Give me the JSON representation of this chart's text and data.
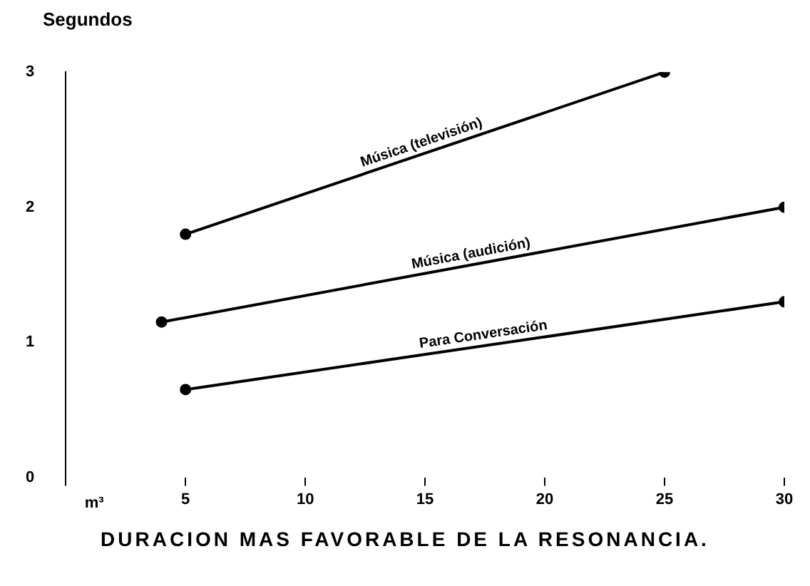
{
  "chart_data": {
    "type": "line",
    "title": "DURACION MAS FAVORABLE DE LA RESONANCIA.",
    "ylabel": "Segundos",
    "xlabel": "m³",
    "xlim": [
      0,
      30
    ],
    "xticks": [
      {
        "value": 0,
        "label": null
      },
      5,
      10,
      15,
      20,
      25,
      30
    ],
    "ylim": [
      0,
      3
    ],
    "yticks": [
      0,
      1,
      2,
      3
    ],
    "series": [
      {
        "name": "Música (televisión)",
        "color": "#000000",
        "x": [
          5,
          25
        ],
        "values": [
          1.8,
          3.0
        ]
      },
      {
        "name": "Música (audición)",
        "color": "#000000",
        "x": [
          4,
          30
        ],
        "values": [
          1.15,
          2.0
        ]
      },
      {
        "name": "Para Conversación",
        "color": "#000000",
        "x": [
          5,
          30
        ],
        "values": [
          0.65,
          1.3
        ]
      }
    ],
    "marker": "circle",
    "line_style": "solid",
    "grid": false,
    "legend": false
  }
}
